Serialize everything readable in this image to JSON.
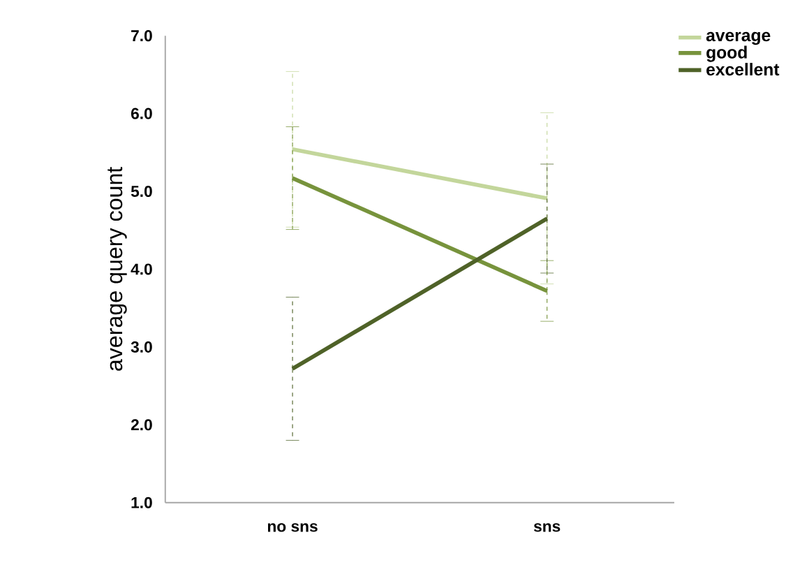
{
  "chart_data": {
    "type": "line",
    "ylabel": "average query count",
    "categories": [
      "no sns",
      "sns"
    ],
    "series": [
      {
        "name": "average",
        "color": "#c3d69b",
        "values": [
          5.54,
          4.91
        ],
        "errors": [
          1.0,
          1.1
        ]
      },
      {
        "name": "good",
        "color": "#77933c",
        "values": [
          5.17,
          3.72
        ],
        "errors": [
          0.66,
          0.39
        ]
      },
      {
        "name": "excellent",
        "color": "#4f6228",
        "values": [
          2.72,
          4.65
        ],
        "errors": [
          0.92,
          0.7
        ]
      }
    ],
    "ylim": [
      1.0,
      7.0
    ],
    "yticks": [
      {
        "value": 1,
        "label": "1.0"
      },
      {
        "value": 2,
        "label": "2.0"
      },
      {
        "value": 3,
        "label": "3.0"
      },
      {
        "value": 4,
        "label": "4.0"
      },
      {
        "value": 5,
        "label": "5.0"
      },
      {
        "value": 6,
        "label": "6.0"
      },
      {
        "value": 7,
        "label": "7.0"
      }
    ],
    "grid": false,
    "legend": "top right",
    "marker": "none",
    "line_style": "solid"
  }
}
